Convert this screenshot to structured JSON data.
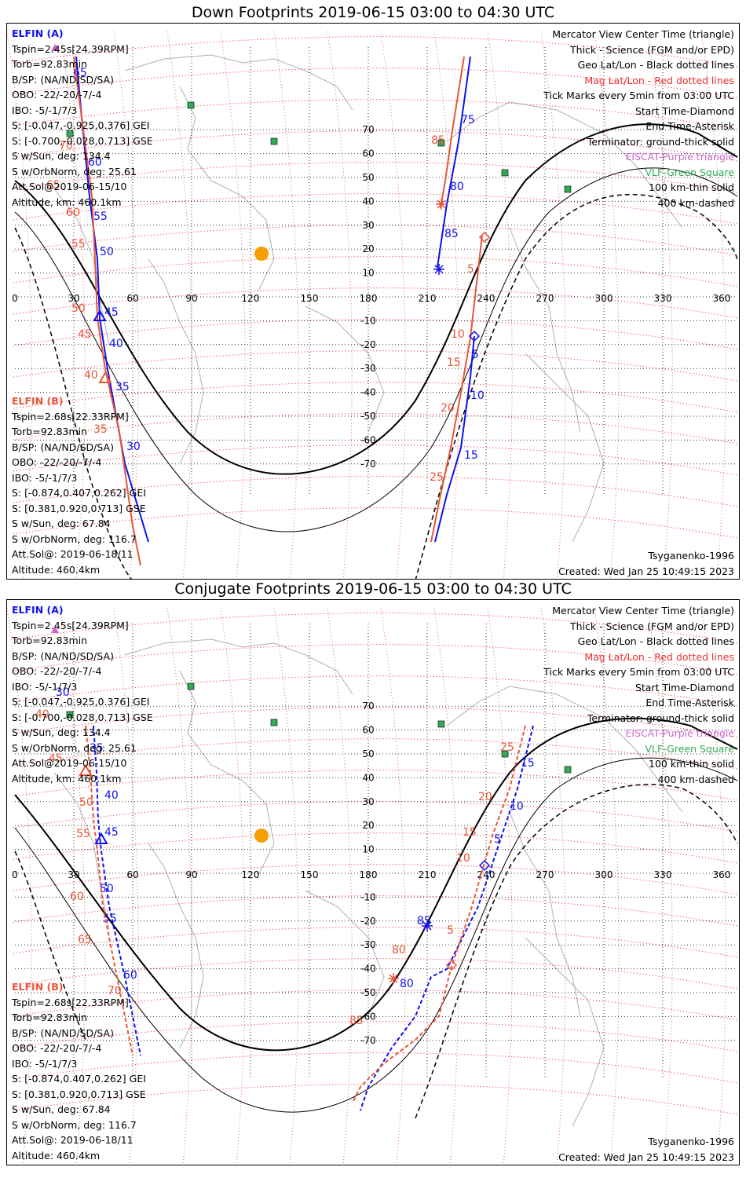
{
  "top_title": "Down Footprints 2019-06-15 03:00 to 04:30 UTC",
  "bottom_title": "Conjugate Footprints 2019-06-15 03:00 to 04:30 UTC",
  "elfin_a": {
    "name": "ELFIN (A)",
    "lines": [
      "Tspin=2.45s[24.39RPM]",
      "Torb=92.83min",
      "B/SP: (NA/ND/SD/SA)",
      "OBO: -22/-20/-7/-4",
      "IBO: -5/-1/7/3",
      "S: [-0.047,-0.925,0.376] GEI",
      "S: [-0.700,-0.028,0.713] GSE",
      "S w/Sun, deg: 134.4",
      "S w/OrbNorm, deg: 25.61",
      "Att.Sol@2019-06-15/10",
      "Altitude, km: 460.1km"
    ]
  },
  "elfin_b": {
    "name": "ELFIN (B)",
    "lines": [
      "Tspin=2.68s[22.33RPM]",
      "Torb=92.83min",
      "B/SP: (NA/ND/SD/SA)",
      "OBO: -22/-20/-7/-4",
      "IBO: -5/-1/7/3",
      "S: [-0.874,0.407,0.262] GEI",
      "S: [0.381,0.920,0.713] GSE",
      "S w/Sun, deg: 67.84",
      "S w/OrbNorm, deg: 116.7",
      "Att.Sol@: 2019-06-18/11",
      "Altitude: 460.4km"
    ]
  },
  "legend": {
    "line1": "Mercator View Center Time (triangle)",
    "line2": "Thick - Science (FGM and/or EPD)",
    "line3": "Geo Lat/Lon - Black dotted lines",
    "line4": "Mag Lat/Lon - Red dotted lines",
    "line5": "Tick Marks every 5min from 03:00 UTC",
    "line6": "Start Time-Diamond",
    "line7": "End Time-Asterisk",
    "line8": "Terminator: ground-thick solid",
    "line9": "EISCAT-Purple triangle",
    "line10": "VLF-Green Square",
    "line11": "100 km-thin solid",
    "line12": "400 km-dashed"
  },
  "model": "Tsyganenko-1996",
  "created": "Created: Wed Jan 25 10:49:15 2023",
  "axes": {
    "lon_ticks": [
      "0",
      "30",
      "60",
      "90",
      "120",
      "150",
      "180",
      "210",
      "240",
      "270",
      "300",
      "330",
      "360"
    ],
    "lat_ticks": [
      "70",
      "60",
      "50",
      "40",
      "30",
      "20",
      "10",
      "-10",
      "-20",
      "-30",
      "-40",
      "-50",
      "-60",
      "-70"
    ]
  },
  "colors": {
    "elfin_a": "#1010ee",
    "elfin_b": "#e8553a",
    "mag_grid": "#ee2020",
    "geo_grid": "#000000",
    "sun": "#f5a000",
    "vlf": "#33aa55",
    "eiscat": "#cc66cc",
    "coast": "#b0b0b0"
  },
  "top_map": {
    "track_a1_labels": [
      "65",
      "60",
      "55",
      "50",
      "45",
      "40",
      "35",
      "30"
    ],
    "track_b1_labels": [
      "70",
      "65",
      "60",
      "55",
      "50",
      "45",
      "40",
      "35"
    ],
    "track_a2_labels": [
      "75",
      "80",
      "85",
      "5",
      "10",
      "15"
    ],
    "track_b2_labels": [
      "85",
      "5",
      "10",
      "15",
      "20",
      "25"
    ]
  },
  "bottom_map": {
    "track_a1_labels": [
      "30",
      "35",
      "40",
      "45",
      "50",
      "55",
      "60"
    ],
    "track_b1_labels": [
      "40",
      "45",
      "50",
      "55",
      "60",
      "65",
      "70"
    ],
    "track_a2_labels": [
      "15",
      "10",
      "5",
      "85",
      "80"
    ],
    "track_b2_labels": [
      "25",
      "20",
      "15",
      "10",
      "5",
      "80",
      "85"
    ]
  }
}
